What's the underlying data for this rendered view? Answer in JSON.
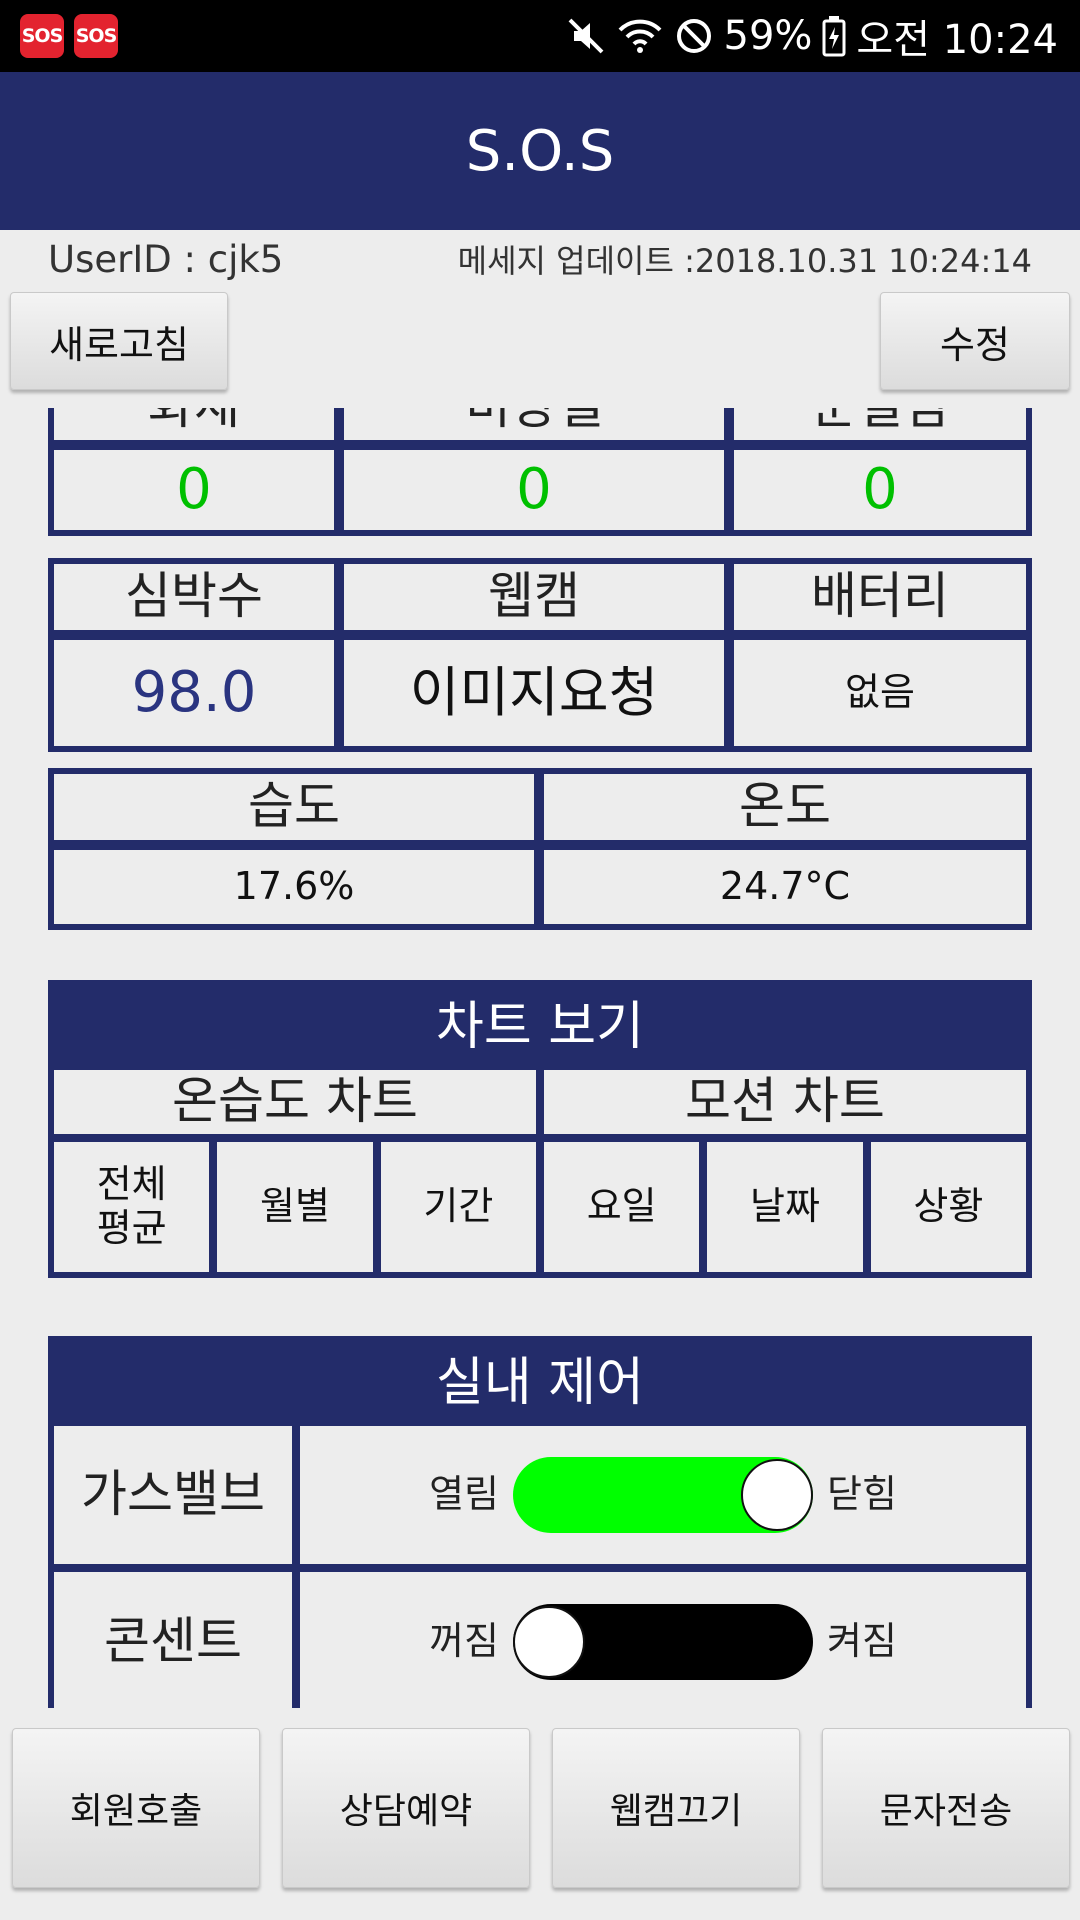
{
  "statusbar": {
    "badges": [
      "SOS",
      "SOS"
    ],
    "icons": [
      "mute-icon",
      "wifi-icon",
      "block-icon",
      "battery-icon"
    ],
    "battery": "59%",
    "time": "오전 10:24"
  },
  "appbar": {
    "title": "S.O.S"
  },
  "user": {
    "id_label": "UserID : cjk5"
  },
  "message_update": "메세지 업데이트 :2018.10.31 10:24:14",
  "buttons": {
    "refresh": "새로고침",
    "edit": "수정"
  },
  "sensors_row1": {
    "headers": [
      "화재",
      "비상벨",
      "문열림"
    ],
    "values": [
      "0",
      "0",
      "0"
    ]
  },
  "sensors_row2": {
    "headers": [
      "심박수",
      "웹캠",
      "배터리"
    ],
    "heart_rate": "98.0",
    "webcam": "이미지요청",
    "battery": "없음"
  },
  "sensors_row3": {
    "headers": [
      "습도",
      "온도"
    ],
    "humidity": "17.6%",
    "temperature": "24.7°C"
  },
  "chart_view": {
    "title": "차트 보기",
    "groups": [
      "온습도 차트",
      "모션 차트"
    ],
    "items": [
      "전체\n평균",
      "월별",
      "기간",
      "요일",
      "날짜",
      "상황"
    ]
  },
  "indoor_control": {
    "title": "실내 제어",
    "gas": {
      "label": "가스밸브",
      "left": "열림",
      "right": "닫힘",
      "on": true
    },
    "outlet": {
      "label": "콘센트",
      "left": "꺼짐",
      "right": "켜짐",
      "on": false
    }
  },
  "bottom": [
    "회원호출",
    "상담예약",
    "웹캠끄기",
    "문자전송"
  ],
  "colors": {
    "navy": "#232c6a",
    "green_value": "#00c000",
    "switch_on": "#00ff00",
    "switch_off": "#000000"
  }
}
